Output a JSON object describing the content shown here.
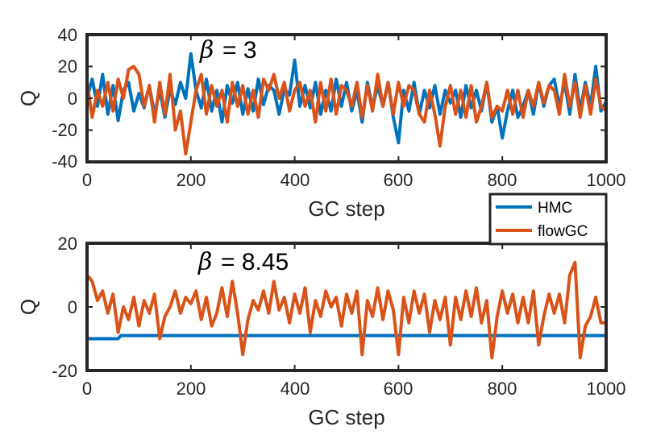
{
  "chart_data": [
    {
      "type": "line",
      "panel": "top",
      "annotation_symbol": "β",
      "annotation_value": "= 3",
      "xlabel": "GC step",
      "ylabel": "Q",
      "xlim": [
        0,
        1000
      ],
      "ylim": [
        -40,
        40
      ],
      "xticks": [
        "0",
        "200",
        "400",
        "600",
        "800",
        "1000"
      ],
      "yticks": [
        "-40",
        "-20",
        "0",
        "20",
        "40"
      ],
      "series": [
        {
          "name": "HMC",
          "color": "#0072BD",
          "x": [
            0,
            10,
            20,
            30,
            40,
            50,
            60,
            70,
            80,
            90,
            100,
            110,
            120,
            130,
            140,
            150,
            160,
            170,
            180,
            190,
            200,
            210,
            220,
            230,
            240,
            250,
            260,
            270,
            280,
            290,
            300,
            310,
            320,
            330,
            340,
            350,
            360,
            370,
            380,
            390,
            400,
            410,
            420,
            430,
            440,
            450,
            460,
            470,
            480,
            490,
            500,
            510,
            520,
            530,
            540,
            550,
            560,
            570,
            580,
            590,
            600,
            610,
            620,
            630,
            640,
            650,
            660,
            670,
            680,
            690,
            700,
            710,
            720,
            730,
            740,
            750,
            760,
            770,
            780,
            790,
            800,
            810,
            820,
            830,
            840,
            850,
            860,
            870,
            880,
            890,
            900,
            910,
            920,
            930,
            940,
            950,
            960,
            970,
            980,
            990,
            1000
          ],
          "values": [
            0,
            12,
            -5,
            15,
            -10,
            8,
            -14,
            5,
            10,
            -8,
            3,
            -6,
            8,
            -10,
            5,
            -12,
            6,
            -4,
            10,
            0,
            28,
            5,
            -6,
            12,
            -8,
            5,
            -15,
            8,
            -3,
            10,
            -10,
            6,
            -8,
            12,
            -4,
            8,
            5,
            -10,
            6,
            2,
            24,
            -5,
            8,
            -6,
            10,
            -10,
            5,
            -8,
            12,
            -5,
            10,
            -8,
            5,
            -15,
            10,
            -6,
            8,
            -5,
            10,
            -12,
            -28,
            5,
            -8,
            10,
            -10,
            5,
            -6,
            8,
            -10,
            5,
            -3,
            5,
            -12,
            8,
            -6,
            5,
            -8,
            10,
            -15,
            -5,
            -25,
            -8,
            5,
            -12,
            -5,
            5,
            -10,
            10,
            -5,
            8,
            12,
            -5,
            10,
            -10,
            15,
            -8,
            10,
            -5,
            20,
            -8,
            -2
          ]
        },
        {
          "name": "flowGC",
          "color": "#D95319",
          "x": [
            0,
            10,
            20,
            30,
            40,
            50,
            60,
            70,
            80,
            90,
            100,
            110,
            120,
            130,
            140,
            150,
            160,
            170,
            180,
            190,
            200,
            210,
            220,
            230,
            240,
            250,
            260,
            270,
            280,
            290,
            300,
            310,
            320,
            330,
            340,
            350,
            360,
            370,
            380,
            390,
            400,
            410,
            420,
            430,
            440,
            450,
            460,
            470,
            480,
            490,
            500,
            510,
            520,
            530,
            540,
            550,
            560,
            570,
            580,
            590,
            600,
            610,
            620,
            630,
            640,
            650,
            660,
            670,
            680,
            690,
            700,
            710,
            720,
            730,
            740,
            750,
            760,
            770,
            780,
            790,
            800,
            810,
            820,
            830,
            840,
            850,
            860,
            870,
            880,
            890,
            900,
            910,
            920,
            930,
            940,
            950,
            960,
            970,
            980,
            990,
            1000
          ],
          "values": [
            10,
            -12,
            5,
            -5,
            10,
            -8,
            12,
            0,
            18,
            20,
            15,
            -5,
            8,
            -15,
            10,
            -10,
            15,
            -20,
            -8,
            -35,
            -15,
            5,
            15,
            -10,
            8,
            -5,
            5,
            -15,
            10,
            -5,
            8,
            -10,
            5,
            -12,
            12,
            5,
            15,
            0,
            10,
            -8,
            5,
            10,
            -5,
            5,
            -15,
            10,
            -8,
            12,
            -10,
            8,
            5,
            -5,
            10,
            -12,
            8,
            -8,
            15,
            -5,
            10,
            -10,
            10,
            -5,
            8,
            5,
            -10,
            -15,
            5,
            -10,
            -30,
            -5,
            8,
            -10,
            5,
            -12,
            8,
            -15,
            -5,
            10,
            -12,
            -5,
            -8,
            5,
            -10,
            5,
            -12,
            5,
            -5,
            10,
            -3,
            8,
            5,
            -10,
            15,
            -5,
            10,
            -12,
            8,
            -10,
            12,
            -5,
            -8
          ]
        }
      ]
    },
    {
      "type": "line",
      "panel": "bottom",
      "annotation_symbol": "β",
      "annotation_value": "= 8.45",
      "xlabel": "GC step",
      "ylabel": "Q",
      "xlim": [
        0,
        1000
      ],
      "ylim": [
        -20,
        20
      ],
      "xticks": [
        "0",
        "200",
        "400",
        "600",
        "800",
        "1000"
      ],
      "yticks": [
        "-20",
        "0",
        "20"
      ],
      "series": [
        {
          "name": "HMC",
          "color": "#0072BD",
          "x": [
            0,
            60,
            65,
            1000
          ],
          "values": [
            -10,
            -10,
            -9,
            -9
          ]
        },
        {
          "name": "flowGC",
          "color": "#D95319",
          "x": [
            0,
            10,
            20,
            30,
            40,
            50,
            60,
            70,
            80,
            90,
            100,
            110,
            120,
            130,
            140,
            150,
            160,
            170,
            180,
            190,
            200,
            210,
            220,
            230,
            240,
            250,
            260,
            270,
            280,
            290,
            300,
            310,
            320,
            330,
            340,
            350,
            360,
            370,
            380,
            390,
            400,
            410,
            420,
            430,
            440,
            450,
            460,
            470,
            480,
            490,
            500,
            510,
            520,
            530,
            540,
            550,
            560,
            570,
            580,
            590,
            600,
            610,
            620,
            630,
            640,
            650,
            660,
            670,
            680,
            690,
            700,
            710,
            720,
            730,
            740,
            750,
            760,
            770,
            780,
            790,
            800,
            810,
            820,
            830,
            840,
            850,
            860,
            870,
            880,
            890,
            900,
            910,
            920,
            930,
            940,
            950,
            960,
            970,
            980,
            990,
            1000
          ],
          "values": [
            10,
            8,
            2,
            5,
            -2,
            4,
            -8,
            0,
            -4,
            3,
            -6,
            2,
            -2,
            4,
            -10,
            -3,
            0,
            5,
            -2,
            3,
            1,
            5,
            -4,
            3,
            -6,
            -2,
            6,
            -3,
            8,
            -2,
            -15,
            -4,
            2,
            -1,
            5,
            -2,
            8,
            -1,
            3,
            -5,
            4,
            -2,
            6,
            -8,
            2,
            -3,
            5,
            0,
            3,
            -6,
            4,
            -2,
            5,
            -15,
            2,
            -3,
            6,
            -4,
            5,
            -1,
            -15,
            3,
            -5,
            5,
            -2,
            4,
            -8,
            2,
            -4,
            3,
            -12,
            3,
            -4,
            5,
            -3,
            6,
            -5,
            2,
            -16,
            -3,
            5,
            -2,
            4,
            -5,
            3,
            -5,
            5,
            -12,
            -3,
            4,
            -2,
            4,
            -5,
            10,
            14,
            -16,
            -6,
            -3,
            3,
            -5,
            -5
          ]
        }
      ]
    }
  ],
  "legend": {
    "items": [
      {
        "label": "HMC",
        "color": "#0072BD"
      },
      {
        "label": "flowGC",
        "color": "#D95319"
      }
    ]
  }
}
